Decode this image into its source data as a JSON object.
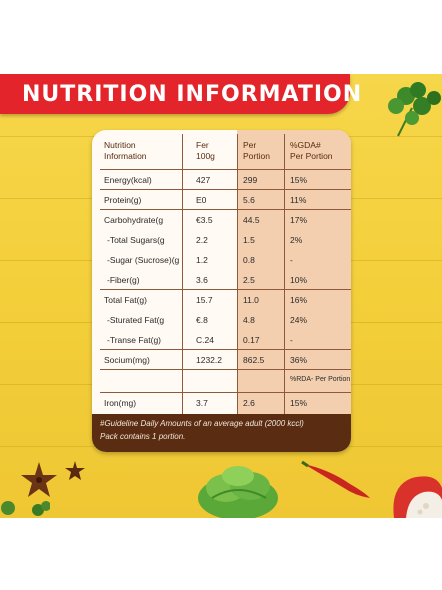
{
  "banner": {
    "title": "NUTRITION INFORMATION"
  },
  "table": {
    "headers": [
      "Nutrition\nInformation",
      "Fer\n100g",
      "Per\nPortion",
      "%GDA#\nPer Portion"
    ],
    "rows": [
      {
        "label": "Energy(kcal)",
        "per100": "427",
        "portion": "299",
        "gda": "15%"
      },
      {
        "label": "Protein(g)",
        "per100": "E0",
        "portion": "5.6",
        "gda": "11%"
      },
      {
        "label": "Carbohydrate(g",
        "per100": "€3.5",
        "portion": "44.5",
        "gda": "17%"
      },
      {
        "label": "-Total Sugars(g",
        "per100": "2.2",
        "portion": "1.5",
        "gda": "2%"
      },
      {
        "label": "-Sugar (Sucrose)(g",
        "per100": "1.2",
        "portion": "0.8",
        "gda": "-"
      },
      {
        "label": "-Fiber(g)",
        "per100": "3.6",
        "portion": "2.5",
        "gda": "10%"
      },
      {
        "label": "Total Fat(g)",
        "per100": "15.7",
        "portion": "11.0",
        "gda": "16%"
      },
      {
        "label": "-Sturated Fat(g",
        "per100": "€.8",
        "portion": "4.8",
        "gda": "24%"
      },
      {
        "label": "-Transe Fat(g)",
        "per100": "C.24",
        "portion": "0.17",
        "gda": "-"
      },
      {
        "label": "Socium(mg)",
        "per100": "1232.2",
        "portion": "862.5",
        "gda": "36%"
      },
      {
        "label": "",
        "per100": "",
        "portion": "",
        "gda": "%RDA- Per Portion"
      },
      {
        "label": "Iron(mg)",
        "per100": "3.7",
        "portion": "2.6",
        "gda": "15%"
      }
    ],
    "footer_line1": "#Guideline Daily Amounts of an average adult (2000 kccl)",
    "footer_line2": "Pack contains 1 portion."
  },
  "decor": {
    "icons": [
      "parsley-icon",
      "star-anise-icon",
      "lettuce-icon",
      "chili-pepper-icon",
      "bell-pepper-icon"
    ],
    "colors": {
      "banner": "#e3242b",
      "background": "#f3cf3a",
      "footer": "#5a2d12",
      "shade": "#f3cfb0"
    }
  }
}
